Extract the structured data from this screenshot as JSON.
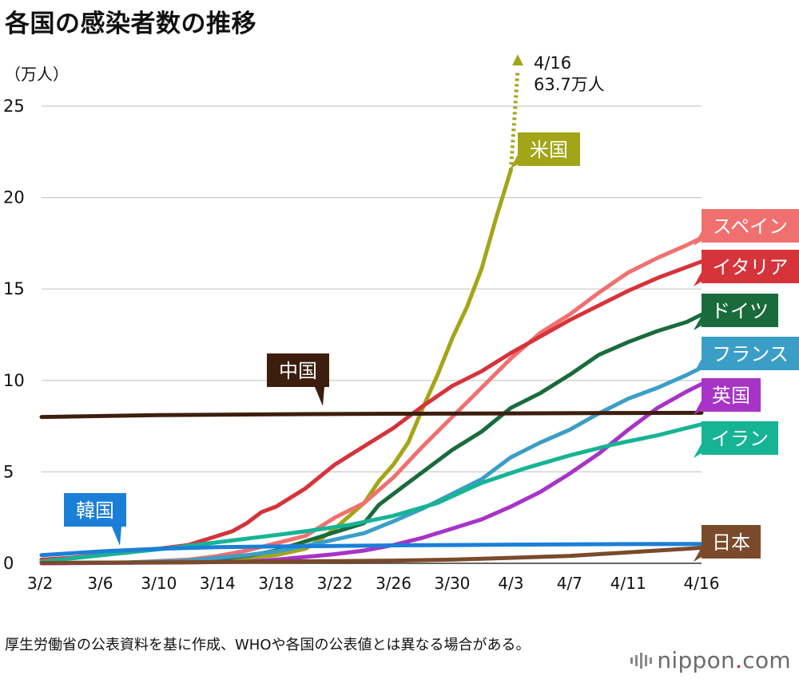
{
  "title": "各国の感染者数の推移",
  "note": "厚生労働省の公表資料を基に作成、WHOや各国の公表値とは異なる場合がある。",
  "logo": {
    "name": "nippon",
    "dot": ".",
    "suffix": "com"
  },
  "chart_data": {
    "type": "line",
    "title": "各国の感染者数の推移",
    "ylabel": "（万人）",
    "xlabel": "",
    "ylim": [
      0,
      25
    ],
    "yticks": [
      0,
      5,
      10,
      15,
      20,
      25
    ],
    "x_tick_labels": [
      "3/2",
      "3/6",
      "3/10",
      "3/14",
      "3/18",
      "3/22",
      "3/26",
      "3/30",
      "4/3",
      "4/7",
      "4/11",
      "4/16"
    ],
    "x_tick_days": [
      0,
      4,
      8,
      12,
      16,
      20,
      24,
      28,
      32,
      36,
      40,
      45
    ],
    "x_start_label": "3/2",
    "x_end_label": "4/16",
    "grid": true,
    "annotation": {
      "line1": "4/16",
      "line2": "63.7万人"
    },
    "series": [
      {
        "name": "米国",
        "color": "#a3a518",
        "label_fill": "#a3a518",
        "label_text_color": "#ffffff",
        "x": [
          0,
          6,
          10,
          14,
          16,
          18,
          19,
          20,
          21,
          22,
          23,
          24,
          25,
          26,
          27,
          28,
          29,
          30,
          31,
          32
        ],
        "y": [
          0.01,
          0.03,
          0.1,
          0.3,
          0.45,
          0.8,
          1.3,
          1.9,
          2.6,
          3.3,
          4.5,
          5.4,
          6.6,
          8.5,
          10.3,
          12.3,
          14.0,
          16.1,
          18.9,
          21.5
        ]
      },
      {
        "name": "スペイン",
        "color": "#f0706f",
        "label_fill": "#f0706f",
        "label_text_color": "#ffffff",
        "x": [
          0,
          6,
          10,
          12,
          14,
          16,
          18,
          20,
          22,
          24,
          26,
          28,
          30,
          32,
          34,
          36,
          38,
          40,
          42,
          44,
          45
        ],
        "y": [
          0.01,
          0.05,
          0.2,
          0.4,
          0.7,
          1.1,
          1.5,
          2.5,
          3.3,
          4.7,
          6.4,
          8.0,
          9.6,
          11.2,
          12.6,
          13.6,
          14.8,
          15.9,
          16.7,
          17.4,
          17.8
        ]
      },
      {
        "name": "イタリア",
        "color": "#d6333b",
        "label_fill": "#d6333b",
        "label_text_color": "#ffffff",
        "x": [
          0,
          2,
          4,
          6,
          8,
          10,
          12,
          13,
          14,
          15,
          16,
          18,
          20,
          22,
          24,
          26,
          28,
          30,
          32,
          34,
          36,
          38,
          40,
          42,
          44,
          45
        ],
        "y": [
          0.2,
          0.3,
          0.45,
          0.6,
          0.8,
          1.0,
          1.5,
          1.75,
          2.2,
          2.8,
          3.1,
          4.1,
          5.4,
          6.4,
          7.4,
          8.6,
          9.7,
          10.5,
          11.5,
          12.4,
          13.3,
          14.1,
          14.9,
          15.6,
          16.2,
          16.5
        ]
      },
      {
        "name": "ドイツ",
        "color": "#1a6b3c",
        "label_fill": "#1a6b3c",
        "label_text_color": "#ffffff",
        "x": [
          0,
          6,
          10,
          14,
          16,
          18,
          20,
          22,
          23,
          24,
          26,
          28,
          30,
          32,
          34,
          36,
          38,
          40,
          42,
          44,
          45
        ],
        "y": [
          0.01,
          0.05,
          0.1,
          0.4,
          0.7,
          1.2,
          1.7,
          2.2,
          3.2,
          3.8,
          5.0,
          6.2,
          7.2,
          8.5,
          9.3,
          10.3,
          11.4,
          12.1,
          12.7,
          13.2,
          13.6
        ]
      },
      {
        "name": "フランス",
        "color": "#3b9ec7",
        "label_fill": "#3b9ec7",
        "label_text_color": "#ffffff",
        "x": [
          0,
          6,
          10,
          14,
          16,
          18,
          20,
          22,
          24,
          26,
          28,
          30,
          32,
          34,
          36,
          38,
          40,
          42,
          44,
          45
        ],
        "y": [
          0.01,
          0.05,
          0.15,
          0.45,
          0.65,
          0.95,
          1.3,
          1.65,
          2.3,
          3.0,
          3.8,
          4.6,
          5.8,
          6.6,
          7.3,
          8.2,
          9.0,
          9.6,
          10.3,
          10.7
        ]
      },
      {
        "name": "英国",
        "color": "#a733c7",
        "label_fill": "#a733c7",
        "label_text_color": "#ffffff",
        "x": [
          0,
          10,
          14,
          16,
          18,
          20,
          22,
          24,
          26,
          28,
          30,
          32,
          34,
          36,
          38,
          40,
          42,
          44,
          45
        ],
        "y": [
          0.0,
          0.05,
          0.1,
          0.2,
          0.35,
          0.5,
          0.7,
          1.0,
          1.4,
          1.9,
          2.4,
          3.1,
          3.9,
          4.9,
          6.0,
          7.3,
          8.5,
          9.4,
          9.8
        ]
      },
      {
        "name": "イラン",
        "color": "#16b494",
        "label_fill": "#16b494",
        "label_text_color": "#ffffff",
        "x": [
          0,
          3,
          6,
          9,
          12,
          15,
          18,
          21,
          24,
          27,
          30,
          33,
          36,
          39,
          42,
          45
        ],
        "y": [
          0.1,
          0.35,
          0.6,
          0.85,
          1.15,
          1.45,
          1.75,
          2.1,
          2.6,
          3.3,
          4.4,
          5.2,
          5.9,
          6.5,
          7.0,
          7.6
        ]
      },
      {
        "name": "中国",
        "color": "#3d1e0e",
        "label_fill": "#3d1e0e",
        "label_text_color": "#ffffff",
        "x": [
          0,
          8,
          16,
          24,
          32,
          40,
          45
        ],
        "y": [
          8.0,
          8.1,
          8.15,
          8.18,
          8.2,
          8.22,
          8.23
        ]
      },
      {
        "name": "韓国",
        "color": "#1b7fd8",
        "label_fill": "#1b7fd8",
        "label_text_color": "#ffffff",
        "x": [
          0,
          4,
          8,
          12,
          16,
          20,
          24,
          28,
          32,
          36,
          40,
          45
        ],
        "y": [
          0.45,
          0.65,
          0.8,
          0.88,
          0.92,
          0.95,
          0.98,
          1.0,
          1.02,
          1.04,
          1.05,
          1.06
        ]
      },
      {
        "name": "日本",
        "color": "#7a4a2a",
        "label_fill": "#7a4a2a",
        "label_text_color": "#ffffff",
        "x": [
          0,
          10,
          16,
          20,
          24,
          28,
          32,
          36,
          40,
          42,
          44,
          45
        ],
        "y": [
          0.02,
          0.06,
          0.1,
          0.12,
          0.15,
          0.2,
          0.3,
          0.4,
          0.6,
          0.7,
          0.8,
          0.85
        ]
      }
    ]
  }
}
